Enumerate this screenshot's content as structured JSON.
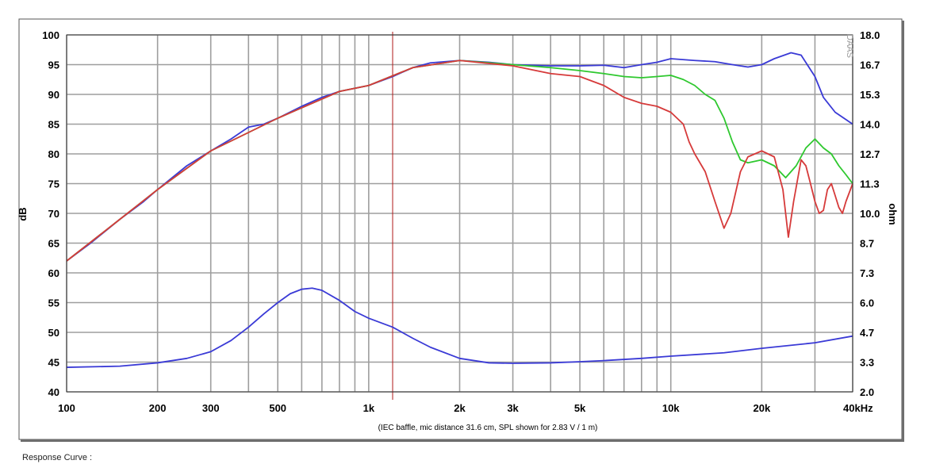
{
  "chart_data": {
    "type": "line",
    "x_scale": "log",
    "x_range_hz": [
      100,
      40000
    ],
    "xticks": [
      {
        "value": 100,
        "label": "100"
      },
      {
        "value": 200,
        "label": "200"
      },
      {
        "value": 300,
        "label": "300"
      },
      {
        "value": 500,
        "label": "500"
      },
      {
        "value": 1000,
        "label": "1k"
      },
      {
        "value": 2000,
        "label": "2k"
      },
      {
        "value": 3000,
        "label": "3k"
      },
      {
        "value": 5000,
        "label": "5k"
      },
      {
        "value": 10000,
        "label": "10k"
      },
      {
        "value": 20000,
        "label": "20k"
      },
      {
        "value": 40000,
        "label": "40kHz"
      }
    ],
    "ylabel_left": "dB",
    "ylim_left": [
      40,
      100
    ],
    "yticks_left": [
      "40",
      "45",
      "50",
      "55",
      "60",
      "65",
      "70",
      "75",
      "80",
      "85",
      "90",
      "95",
      "100"
    ],
    "ylabel_right": "ohm",
    "ylim_right": [
      2.0,
      18.0
    ],
    "yticks_right": [
      "2.0",
      "3.3",
      "4.7",
      "6.0",
      "7.3",
      "8.7",
      "10.0",
      "11.3",
      "12.7",
      "14.0",
      "15.3",
      "16.7",
      "18.0"
    ],
    "annotation": "(IEC baffle, mic distance 31.6 cm, SPL shown for 2.83 V / 1 m)",
    "watermark": "DAAS",
    "marker_line_hz": 1200,
    "grid": true,
    "series": [
      {
        "axis": "left",
        "color": "#3a3ad6",
        "points": [
          [
            100,
            62
          ],
          [
            120,
            65
          ],
          [
            150,
            69
          ],
          [
            180,
            72
          ],
          [
            200,
            74
          ],
          [
            250,
            78
          ],
          [
            300,
            80.5
          ],
          [
            350,
            82.5
          ],
          [
            400,
            84.5
          ],
          [
            450,
            85
          ],
          [
            500,
            86
          ],
          [
            600,
            88
          ],
          [
            700,
            89.5
          ],
          [
            800,
            90.5
          ],
          [
            1000,
            91.5
          ],
          [
            1200,
            93
          ],
          [
            1400,
            94.5
          ],
          [
            1600,
            95.3
          ],
          [
            2000,
            95.7
          ],
          [
            2500,
            95.4
          ],
          [
            3000,
            95
          ],
          [
            4000,
            94.8
          ],
          [
            5000,
            94.8
          ],
          [
            6000,
            94.9
          ],
          [
            7000,
            94.5
          ],
          [
            8000,
            95
          ],
          [
            9000,
            95.4
          ],
          [
            10000,
            96
          ],
          [
            12000,
            95.7
          ],
          [
            14000,
            95.5
          ],
          [
            16000,
            95
          ],
          [
            18000,
            94.6
          ],
          [
            20000,
            95
          ],
          [
            22000,
            96
          ],
          [
            25000,
            97
          ],
          [
            27000,
            96.6
          ],
          [
            30000,
            93
          ],
          [
            32000,
            89.5
          ],
          [
            35000,
            87
          ],
          [
            40000,
            85
          ]
        ]
      },
      {
        "axis": "left",
        "color": "#2ec82e",
        "points": [
          [
            100,
            62
          ],
          [
            150,
            69
          ],
          [
            200,
            74
          ],
          [
            300,
            80.5
          ],
          [
            500,
            86
          ],
          [
            800,
            90.5
          ],
          [
            1000,
            91.5
          ],
          [
            1400,
            94.5
          ],
          [
            2000,
            95.7
          ],
          [
            3000,
            95
          ],
          [
            4000,
            94.5
          ],
          [
            5000,
            94
          ],
          [
            6000,
            93.5
          ],
          [
            7000,
            93
          ],
          [
            8000,
            92.8
          ],
          [
            9000,
            93
          ],
          [
            10000,
            93.2
          ],
          [
            11000,
            92.5
          ],
          [
            12000,
            91.5
          ],
          [
            13000,
            90
          ],
          [
            14000,
            89
          ],
          [
            15000,
            86
          ],
          [
            16000,
            82
          ],
          [
            17000,
            79
          ],
          [
            18000,
            78.5
          ],
          [
            20000,
            79
          ],
          [
            22000,
            78
          ],
          [
            24000,
            76
          ],
          [
            26000,
            78
          ],
          [
            28000,
            81
          ],
          [
            30000,
            82.5
          ],
          [
            32000,
            81
          ],
          [
            34000,
            80
          ],
          [
            36000,
            78
          ],
          [
            38000,
            76.5
          ],
          [
            40000,
            75
          ]
        ]
      },
      {
        "axis": "left",
        "color": "#d63a3a",
        "points": [
          [
            100,
            62
          ],
          [
            150,
            69
          ],
          [
            200,
            74
          ],
          [
            300,
            80.5
          ],
          [
            500,
            86
          ],
          [
            800,
            90.5
          ],
          [
            1000,
            91.5
          ],
          [
            1400,
            94.5
          ],
          [
            2000,
            95.7
          ],
          [
            3000,
            94.8
          ],
          [
            4000,
            93.5
          ],
          [
            5000,
            93
          ],
          [
            6000,
            91.5
          ],
          [
            7000,
            89.5
          ],
          [
            8000,
            88.5
          ],
          [
            9000,
            88
          ],
          [
            10000,
            87
          ],
          [
            11000,
            85
          ],
          [
            11500,
            82
          ],
          [
            12000,
            80
          ],
          [
            13000,
            77
          ],
          [
            14000,
            72
          ],
          [
            15000,
            67.5
          ],
          [
            15800,
            70
          ],
          [
            17000,
            77
          ],
          [
            18000,
            79.5
          ],
          [
            20000,
            80.5
          ],
          [
            22000,
            79.5
          ],
          [
            23500,
            74
          ],
          [
            24500,
            66
          ],
          [
            25500,
            72
          ],
          [
            27000,
            79
          ],
          [
            28000,
            78
          ],
          [
            29000,
            75
          ],
          [
            30000,
            72
          ],
          [
            31000,
            70
          ],
          [
            32000,
            70.5
          ],
          [
            33000,
            74
          ],
          [
            34000,
            75
          ],
          [
            35000,
            73
          ],
          [
            36000,
            71
          ],
          [
            37000,
            70
          ],
          [
            38000,
            72
          ],
          [
            40000,
            75
          ]
        ]
      },
      {
        "axis": "right",
        "color": "#3a3ad6",
        "points": [
          [
            100,
            3.1
          ],
          [
            150,
            3.15
          ],
          [
            200,
            3.3
          ],
          [
            250,
            3.5
          ],
          [
            300,
            3.8
          ],
          [
            350,
            4.3
          ],
          [
            400,
            4.9
          ],
          [
            450,
            5.5
          ],
          [
            500,
            6.0
          ],
          [
            550,
            6.4
          ],
          [
            600,
            6.6
          ],
          [
            650,
            6.65
          ],
          [
            700,
            6.55
          ],
          [
            800,
            6.1
          ],
          [
            900,
            5.6
          ],
          [
            1000,
            5.3
          ],
          [
            1200,
            4.9
          ],
          [
            1400,
            4.4
          ],
          [
            1600,
            4.0
          ],
          [
            2000,
            3.5
          ],
          [
            2500,
            3.3
          ],
          [
            3000,
            3.28
          ],
          [
            4000,
            3.3
          ],
          [
            5000,
            3.35
          ],
          [
            6000,
            3.4
          ],
          [
            8000,
            3.5
          ],
          [
            10000,
            3.6
          ],
          [
            15000,
            3.75
          ],
          [
            20000,
            3.95
          ],
          [
            30000,
            4.2
          ],
          [
            40000,
            4.5
          ]
        ]
      }
    ]
  },
  "caption": "Response Curve :"
}
